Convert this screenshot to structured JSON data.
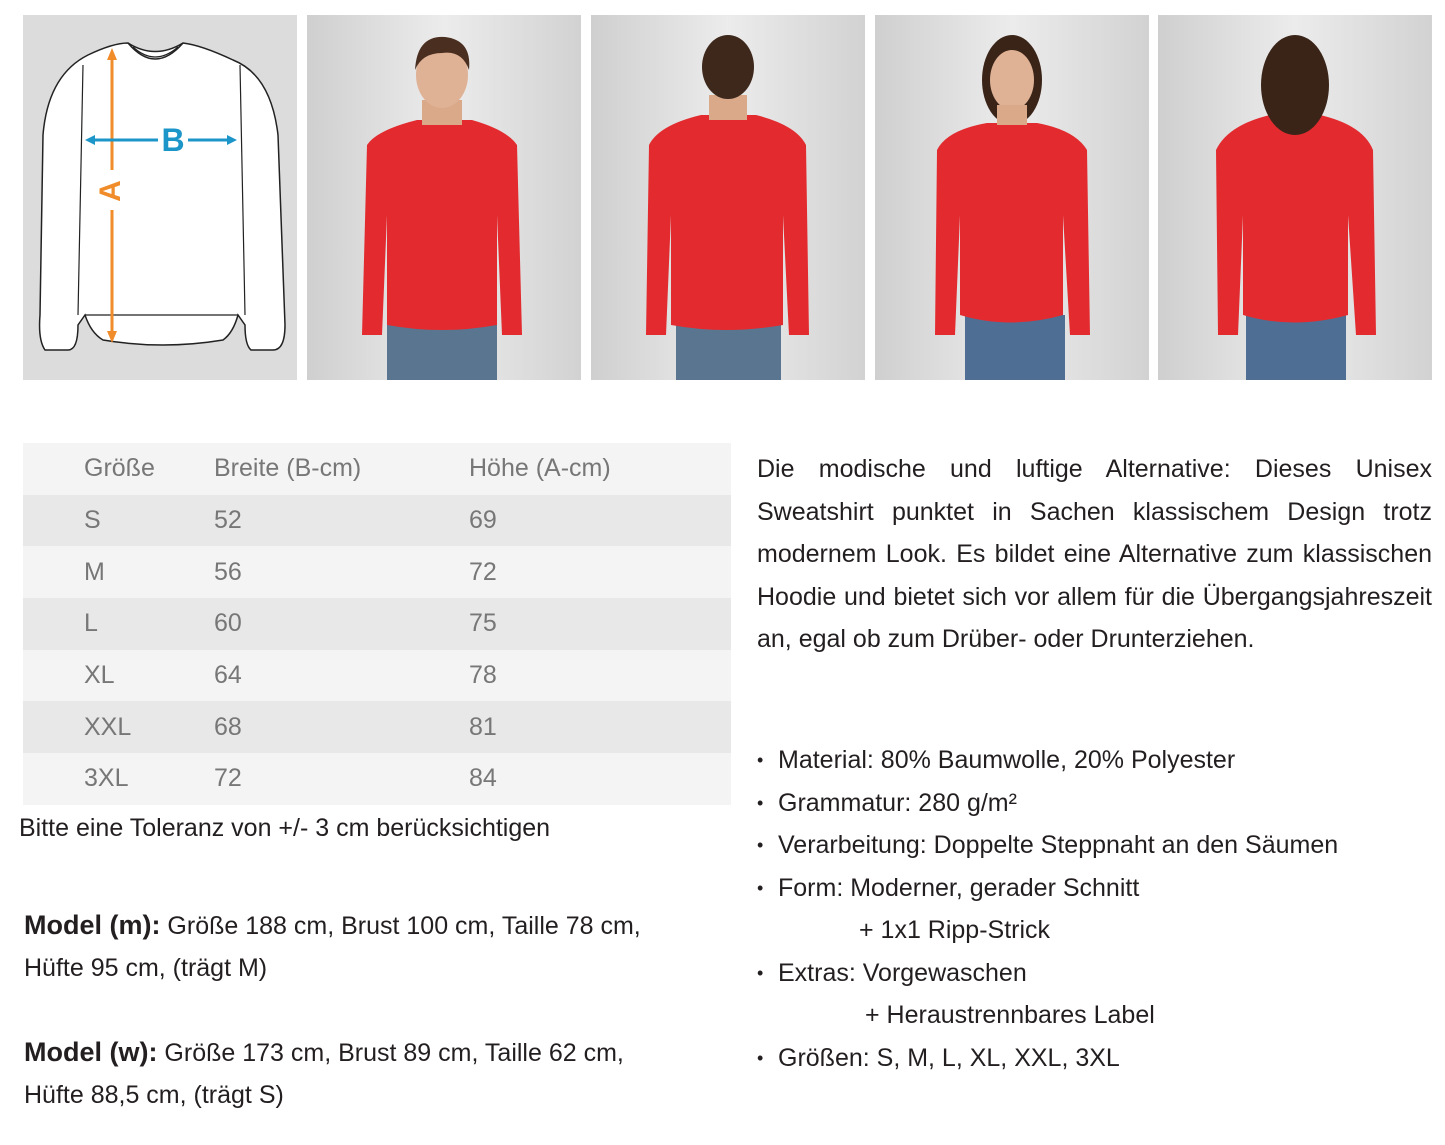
{
  "size_diagram": {
    "label_a": "A",
    "label_b": "B",
    "colors": {
      "a_arrow": "#f08c2a",
      "b_arrow": "#1c95c9"
    }
  },
  "photos": [
    {
      "name": "model-man-front"
    },
    {
      "name": "model-man-back"
    },
    {
      "name": "model-woman-front"
    },
    {
      "name": "model-woman-back"
    }
  ],
  "product_color": "#e32b2f",
  "size_table": {
    "headers": [
      "Größe",
      "Breite (B-cm)",
      "Höhe (A-cm)"
    ],
    "rows": [
      [
        "S",
        "52",
        "69"
      ],
      [
        "M",
        "56",
        "72"
      ],
      [
        "L",
        "60",
        "75"
      ],
      [
        "XL",
        "64",
        "78"
      ],
      [
        "XXL",
        "68",
        "81"
      ],
      [
        "3XL",
        "72",
        "84"
      ]
    ]
  },
  "tolerance_note": "Bitte eine Toleranz von +/- 3 cm berücksichtigen",
  "models": [
    {
      "label": "Model (m):",
      "line1": " Größe 188 cm, Brust 100 cm, Taille 78 cm,",
      "line2": "Hüfte 95 cm, (trägt M)"
    },
    {
      "label": "Model (w):",
      "line1": " Größe 173 cm, Brust 89 cm, Taille 62 cm,",
      "line2": "Hüfte 88,5 cm, (trägt S)"
    }
  ],
  "description": "Die modische und luftige Alternative: Dieses Unisex Sweatshirt punktet in Sachen klassischem Design trotz modernem Look. Es bildet eine Alternative zum klassischen Hoodie und bietet sich vor allem für die Übergangsjahreszeit an, egal ob zum Drüber- oder Drunterziehen.",
  "features": [
    {
      "text": "Material: 80% Baumwolle, 20% Polyester",
      "bullet": true
    },
    {
      "text": "Grammatur: 280 g/m²",
      "bullet": true
    },
    {
      "text": "Verarbeitung: Doppelte Steppnaht an den Säumen",
      "bullet": true
    },
    {
      "text": "Form: Moderner, gerader Schnitt",
      "bullet": true
    },
    {
      "text": "+ 1x1 Ripp-Strick",
      "bullet": false
    },
    {
      "text": "Extras: Vorgewaschen",
      "bullet": true
    },
    {
      "text": "+ Heraustrennbares Label",
      "bullet": false
    },
    {
      "text": "Größen:  S, M, L, XL, XXL, 3XL",
      "bullet": true
    }
  ]
}
